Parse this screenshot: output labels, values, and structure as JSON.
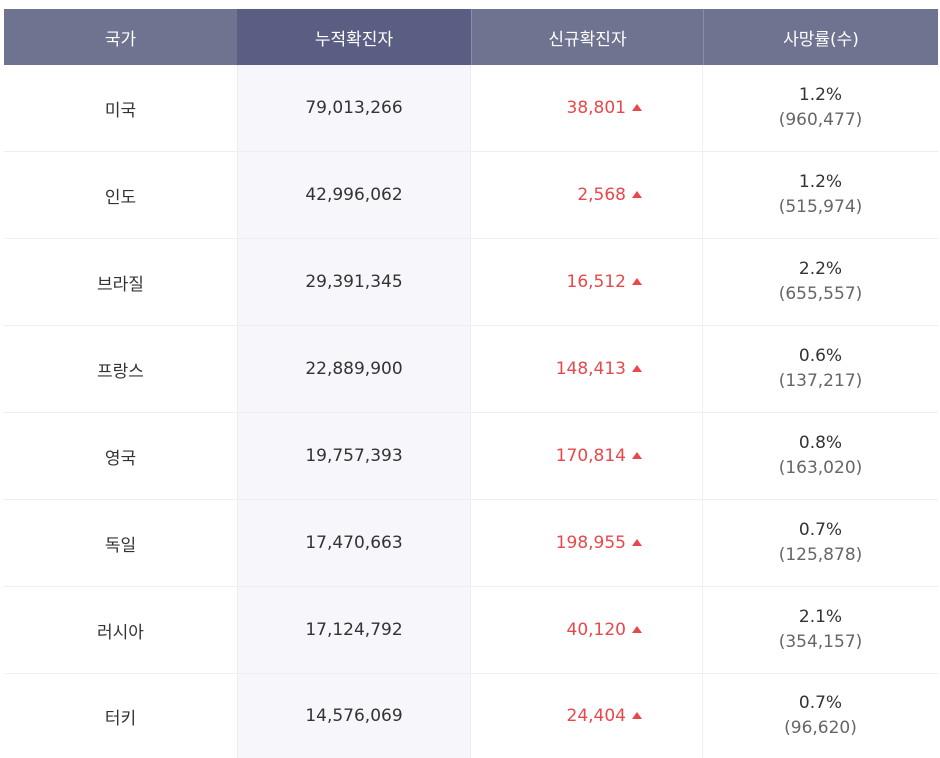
{
  "header": {
    "country": "국가",
    "cumulative": "누적확진자",
    "new_cases": "신규확진자",
    "death_rate": "사망률(수)"
  },
  "colors": {
    "header_bg": "#6e7390",
    "header_active_bg": "#5b5e83",
    "increase": "#e8484b"
  },
  "rows": [
    {
      "country": "미국",
      "cumulative": "79,013,266",
      "new_cases": "38,801",
      "trend_icon": "triangle-up-icon",
      "rate": "1.2%",
      "deaths": "(960,477)"
    },
    {
      "country": "인도",
      "cumulative": "42,996,062",
      "new_cases": "2,568",
      "trend_icon": "triangle-up-icon",
      "rate": "1.2%",
      "deaths": "(515,974)"
    },
    {
      "country": "브라질",
      "cumulative": "29,391,345",
      "new_cases": "16,512",
      "trend_icon": "triangle-up-icon",
      "rate": "2.2%",
      "deaths": "(655,557)"
    },
    {
      "country": "프랑스",
      "cumulative": "22,889,900",
      "new_cases": "148,413",
      "trend_icon": "triangle-up-icon",
      "rate": "0.6%",
      "deaths": "(137,217)"
    },
    {
      "country": "영국",
      "cumulative": "19,757,393",
      "new_cases": "170,814",
      "trend_icon": "triangle-up-icon",
      "rate": "0.8%",
      "deaths": "(163,020)"
    },
    {
      "country": "독일",
      "cumulative": "17,470,663",
      "new_cases": "198,955",
      "trend_icon": "triangle-up-icon",
      "rate": "0.7%",
      "deaths": "(125,878)"
    },
    {
      "country": "러시아",
      "cumulative": "17,124,792",
      "new_cases": "40,120",
      "trend_icon": "triangle-up-icon",
      "rate": "2.1%",
      "deaths": "(354,157)"
    },
    {
      "country": "터키",
      "cumulative": "14,576,069",
      "new_cases": "24,404",
      "trend_icon": "triangle-up-icon",
      "rate": "0.7%",
      "deaths": "(96,620)"
    }
  ]
}
